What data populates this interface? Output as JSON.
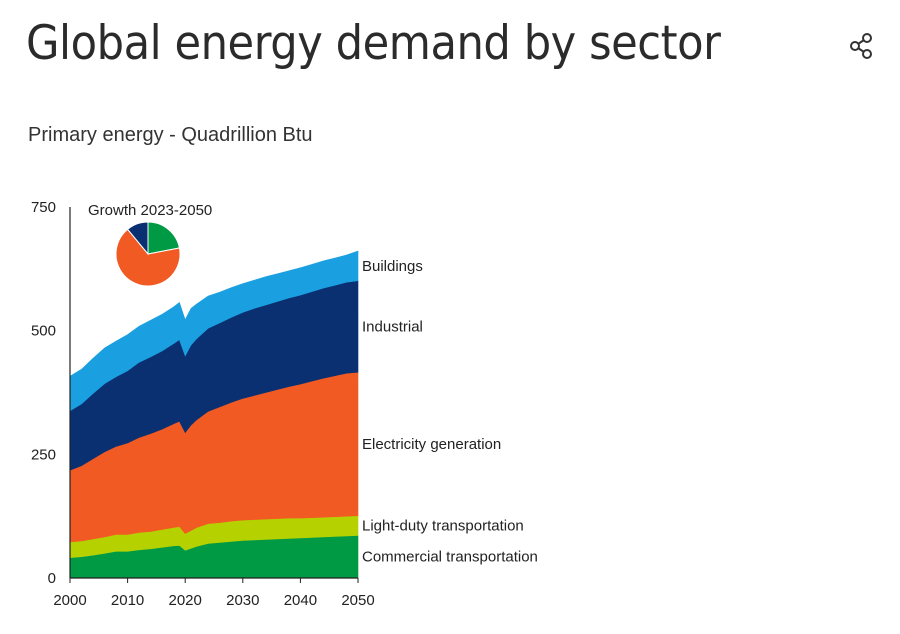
{
  "header": {
    "title": "Global energy demand by sector",
    "subtitle": "Primary energy - Quadrillion Btu"
  },
  "icons": {
    "share": "share-icon"
  },
  "chart_data": {
    "type": "area",
    "stacked": true,
    "title": "Global energy demand by sector",
    "ylabel": "Primary energy - Quadrillion Btu",
    "xlabel": "",
    "x": [
      2000,
      2002,
      2004,
      2006,
      2008,
      2010,
      2012,
      2014,
      2016,
      2018,
      2019,
      2020,
      2021,
      2022,
      2024,
      2026,
      2028,
      2030,
      2032,
      2034,
      2036,
      2038,
      2040,
      2042,
      2044,
      2046,
      2048,
      2050
    ],
    "xlim": [
      2000,
      2050
    ],
    "ylim": [
      0,
      750
    ],
    "xticks": [
      2000,
      2010,
      2020,
      2030,
      2040,
      2050
    ],
    "yticks": [
      0,
      250,
      500,
      750
    ],
    "series": [
      {
        "name": "Commercial transportation",
        "color": "#009a44",
        "values": [
          41,
          43,
          46,
          50,
          54,
          54,
          57,
          59,
          62,
          65,
          66,
          56,
          60,
          64,
          70,
          72,
          74,
          76,
          77,
          78,
          79,
          80,
          81,
          82,
          83,
          84,
          85,
          86
        ]
      },
      {
        "name": "Light-duty transportation",
        "color": "#b5d200",
        "values": [
          32,
          32,
          33,
          33,
          34,
          34,
          35,
          35,
          36,
          37,
          38,
          34,
          36,
          38,
          40,
          40,
          41,
          41,
          41,
          41,
          41,
          41,
          40,
          40,
          40,
          40,
          40,
          40
        ]
      },
      {
        "name": "Electricity generation",
        "color": "#f15a22",
        "values": [
          145,
          152,
          162,
          172,
          178,
          185,
          192,
          198,
          203,
          210,
          213,
          204,
          213,
          218,
          227,
          234,
          240,
          246,
          251,
          256,
          261,
          266,
          271,
          276,
          281,
          285,
          289,
          290
        ]
      },
      {
        "name": "Industrial",
        "color": "#0b3071",
        "values": [
          120,
          125,
          132,
          138,
          141,
          146,
          152,
          155,
          158,
          162,
          165,
          155,
          162,
          164,
          168,
          170,
          172,
          174,
          176,
          177,
          178,
          179,
          180,
          181,
          182,
          183,
          184,
          185
        ]
      },
      {
        "name": "Buildings",
        "color": "#1aa0e0",
        "values": [
          70,
          70,
          71,
          72,
          72,
          73,
          73,
          74,
          74,
          74,
          75,
          73,
          74,
          70,
          65,
          62,
          60,
          58,
          57,
          57,
          56,
          55,
          55,
          55,
          55,
          55,
          55,
          60
        ]
      }
    ],
    "inset": {
      "type": "pie",
      "title": "Growth 2023-2050",
      "slices": [
        {
          "name": "Commercial transportation",
          "value": 22,
          "color": "#009a44"
        },
        {
          "name": "Electricity generation",
          "value": 67,
          "color": "#f15a22"
        },
        {
          "name": "Industrial",
          "value": 11,
          "color": "#0b3071"
        }
      ]
    }
  }
}
